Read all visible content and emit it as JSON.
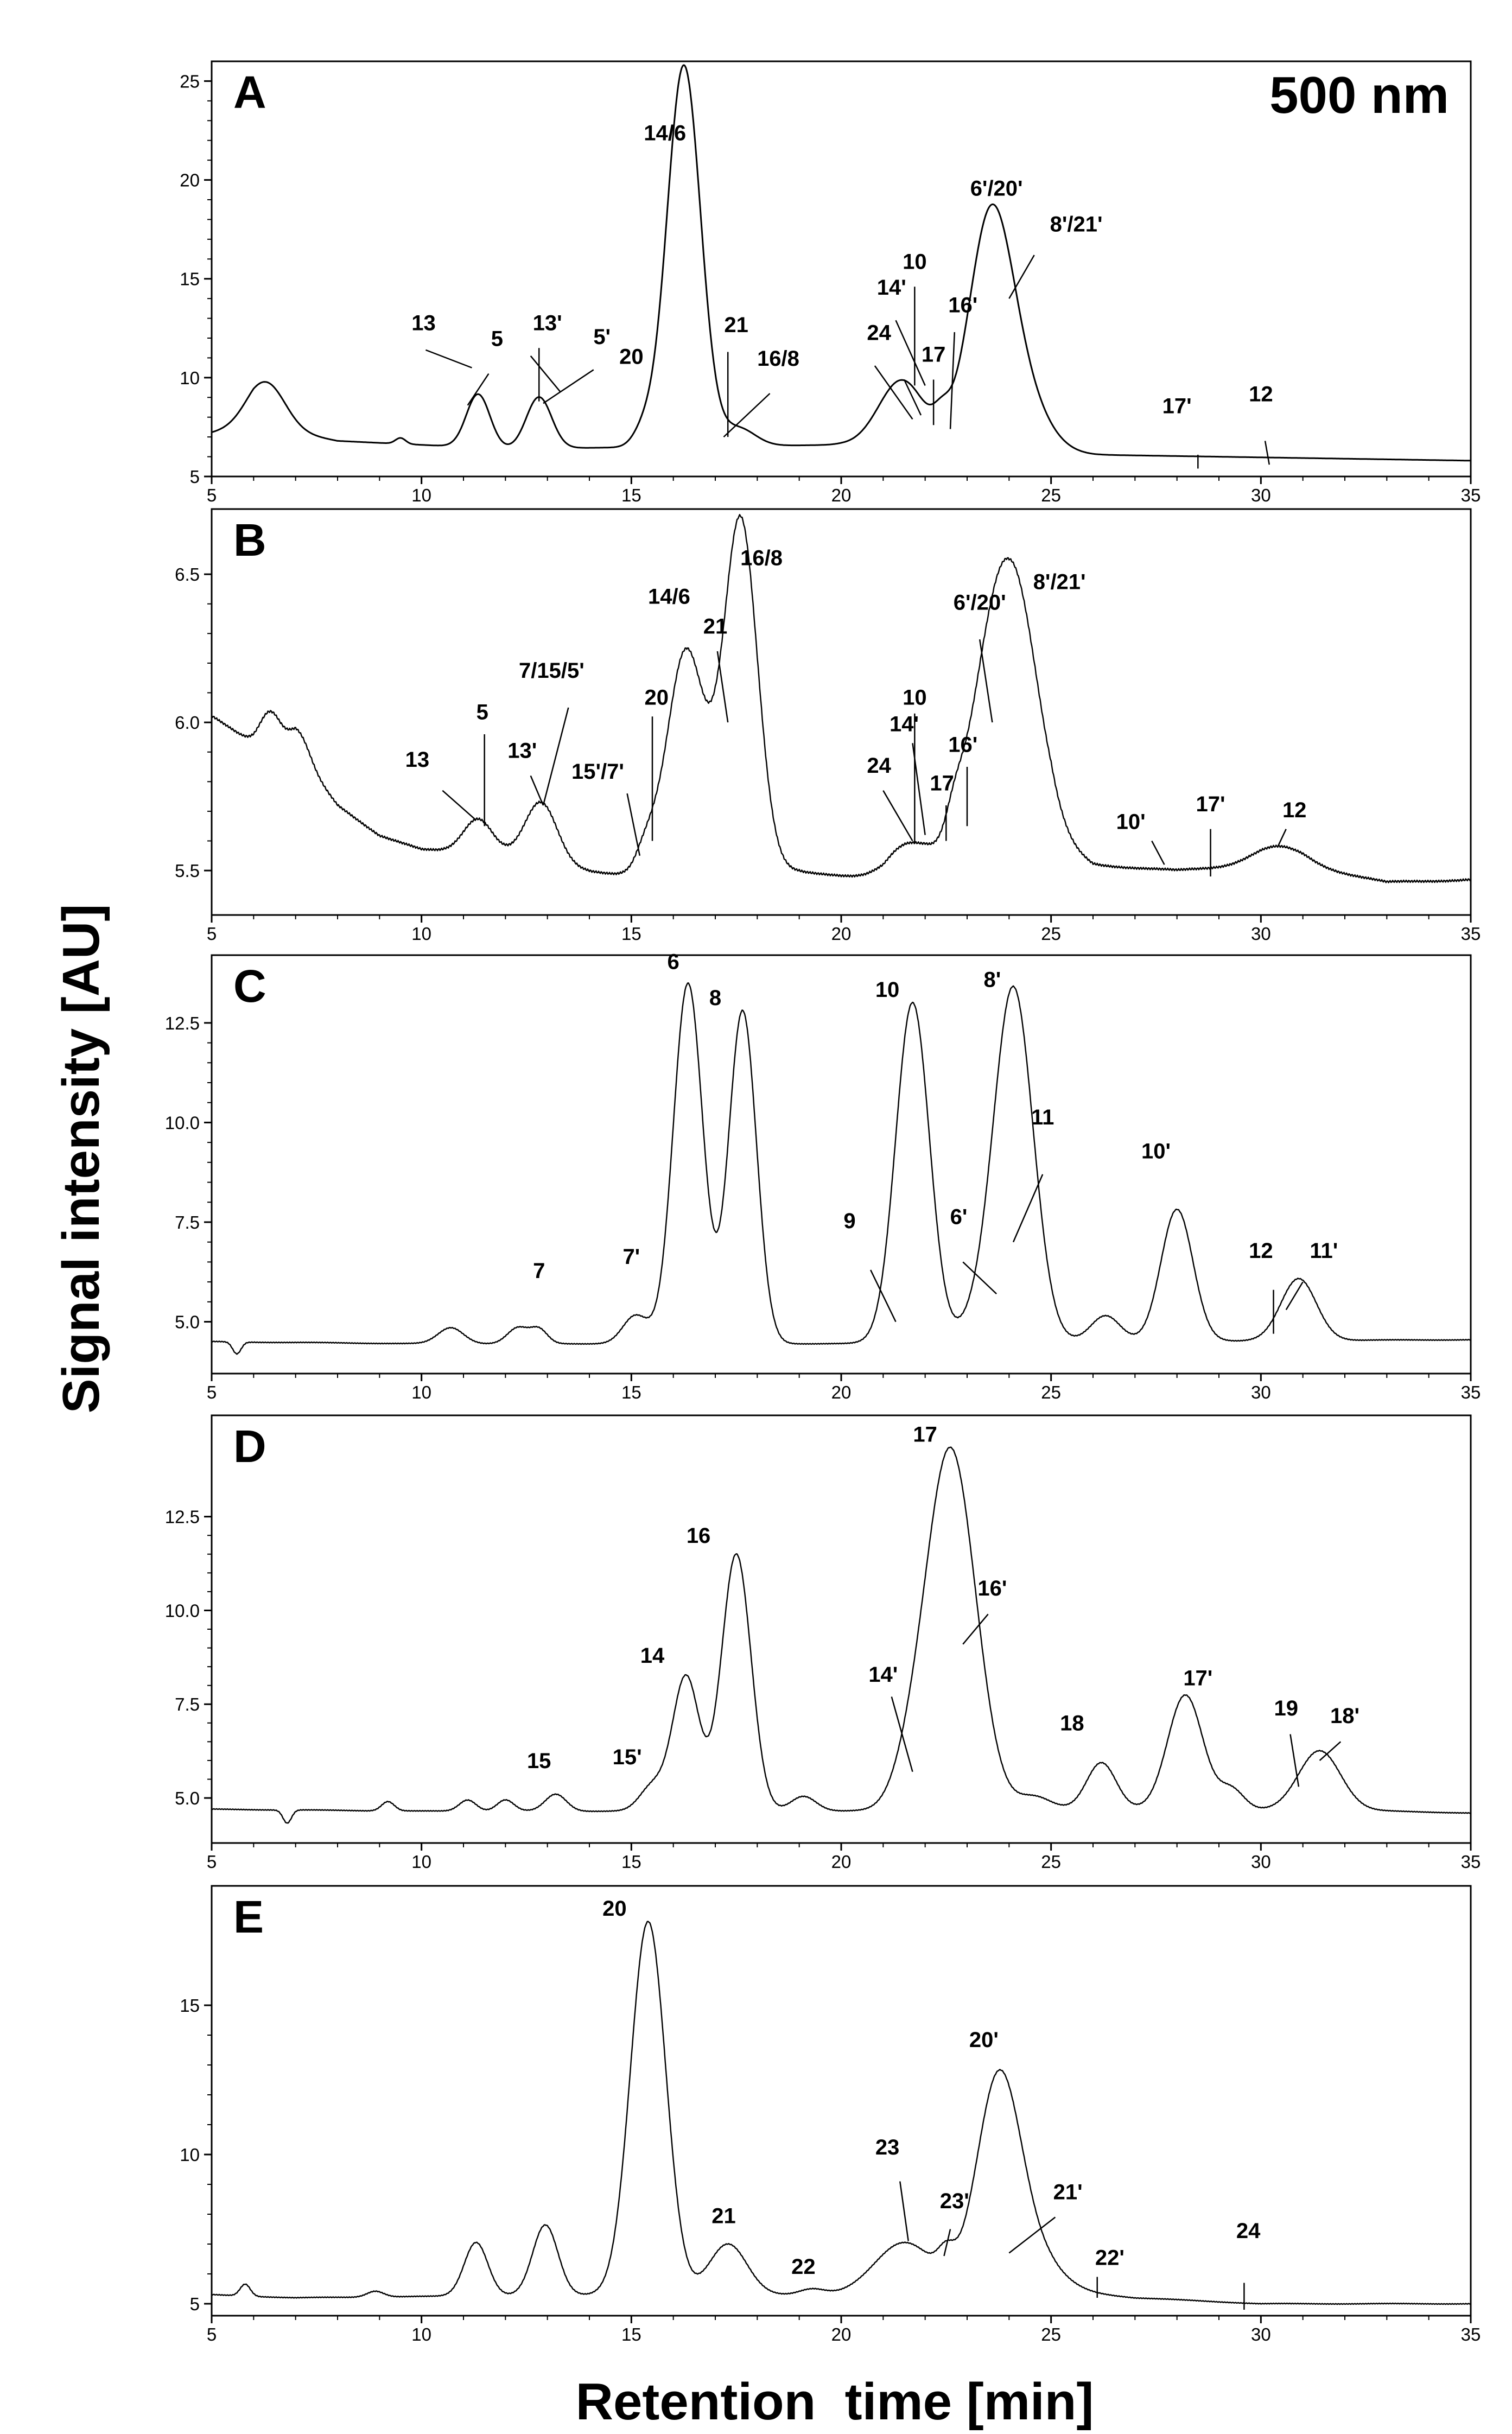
{
  "chart_data": [
    {
      "type": "line",
      "panel_label": "A",
      "corner_label": "500 nm",
      "xlim": [
        5,
        35
      ],
      "ylim": [
        5,
        26
      ],
      "x_ticks": [
        5,
        10,
        15,
        20,
        25,
        30,
        35
      ],
      "y_ticks": [
        5,
        10,
        15,
        20,
        25
      ],
      "y_tick_labels": [
        "5",
        "10",
        "15",
        "20",
        "25"
      ],
      "baseline": [
        [
          5,
          7.2
        ],
        [
          6,
          7.6
        ],
        [
          8,
          6.8
        ],
        [
          12,
          6.4
        ],
        [
          20,
          6.6
        ],
        [
          26,
          6.1
        ],
        [
          35,
          5.8
        ]
      ],
      "noise": 0,
      "peaks": [
        [
          6.3,
          2.3,
          0.45
        ],
        [
          9.5,
          0.3,
          0.12
        ],
        [
          11.35,
          2.7,
          0.28
        ],
        [
          12.8,
          2.6,
          0.3
        ],
        [
          15.3,
          0.8,
          0.25
        ],
        [
          16.25,
          19.3,
          0.4
        ],
        [
          17.55,
          0.9,
          0.4
        ],
        [
          21.45,
          3.4,
          0.55
        ],
        [
          22.4,
          0.9,
          0.2
        ],
        [
          23.55,
          11.2,
          0.52
        ],
        [
          24.3,
          2.6,
          0.6
        ]
      ],
      "annotations": [
        {
          "text": "13",
          "x": 10.05,
          "y": 12.4
        },
        {
          "text": "5",
          "x": 11.8,
          "y": 11.6
        },
        {
          "text": "13'",
          "x": 13.0,
          "y": 12.4
        },
        {
          "text": "5'",
          "x": 14.3,
          "y": 11.7
        },
        {
          "text": "14/6",
          "x": 15.8,
          "y": 22.0
        },
        {
          "text": "20",
          "x": 15.0,
          "y": 10.7
        },
        {
          "text": "21",
          "x": 17.5,
          "y": 12.3
        },
        {
          "text": "16/8",
          "x": 18.5,
          "y": 10.6
        },
        {
          "text": "24",
          "x": 20.9,
          "y": 11.9
        },
        {
          "text": "14'",
          "x": 21.2,
          "y": 14.2
        },
        {
          "text": "10",
          "x": 21.75,
          "y": 15.5
        },
        {
          "text": "17",
          "x": 22.2,
          "y": 10.8
        },
        {
          "text": "16'",
          "x": 22.9,
          "y": 13.3
        },
        {
          "text": "6'/20'",
          "x": 23.7,
          "y": 19.2
        },
        {
          "text": "8'/21'",
          "x": 25.6,
          "y": 17.4
        },
        {
          "text": "17'",
          "x": 28.0,
          "y": 8.2
        },
        {
          "text": "12",
          "x": 30.0,
          "y": 8.8
        }
      ],
      "annotation_lines": [
        [
          11.6,
          10.2,
          11.1,
          8.6
        ],
        [
          12.8,
          11.5,
          12.8,
          8.8
        ],
        [
          11.2,
          10.5,
          10.1,
          11.4
        ],
        [
          13.3,
          9.3,
          12.6,
          11.1
        ],
        [
          14.1,
          10.4,
          12.9,
          8.7
        ],
        [
          17.3,
          11.3,
          17.3,
          7.0
        ],
        [
          18.3,
          9.2,
          17.2,
          7.0
        ],
        [
          21.5,
          9.9,
          21.9,
          8.1
        ],
        [
          20.8,
          10.6,
          21.7,
          7.9
        ],
        [
          21.3,
          12.9,
          22.0,
          9.6
        ],
        [
          21.75,
          14.6,
          21.75,
          9.6
        ],
        [
          22.2,
          9.9,
          22.2,
          7.6
        ],
        [
          22.7,
          12.3,
          22.6,
          7.4
        ],
        [
          24.6,
          16.2,
          24.0,
          14.0
        ],
        [
          28.5,
          6.1,
          28.5,
          5.4
        ],
        [
          30.1,
          6.8,
          30.2,
          5.6
        ]
      ]
    },
    {
      "type": "line",
      "panel_label": "B",
      "xlim": [
        5,
        35
      ],
      "ylim": [
        5.35,
        6.72
      ],
      "x_ticks": [
        5,
        10,
        15,
        20,
        25,
        30,
        35
      ],
      "y_ticks": [
        5.5,
        6.0,
        6.5
      ],
      "y_tick_labels": [
        "5.5",
        "6.0",
        "6.5"
      ],
      "baseline": [
        [
          5,
          6.02
        ],
        [
          6,
          5.93
        ],
        [
          7,
          5.9
        ],
        [
          8,
          5.72
        ],
        [
          9,
          5.62
        ],
        [
          10,
          5.57
        ],
        [
          12,
          5.55
        ],
        [
          14,
          5.5
        ],
        [
          15,
          5.48
        ],
        [
          17,
          5.52
        ],
        [
          19,
          5.5
        ],
        [
          21,
          5.46
        ],
        [
          22,
          5.52
        ],
        [
          24,
          5.54
        ],
        [
          25,
          5.6
        ],
        [
          26,
          5.52
        ],
        [
          28,
          5.5
        ],
        [
          30,
          5.52
        ],
        [
          31,
          5.52
        ],
        [
          33,
          5.46
        ],
        [
          35,
          5.47
        ]
      ],
      "noise": 0.006,
      "peaks": [
        [
          6.4,
          0.12,
          0.25
        ],
        [
          7.1,
          0.08,
          0.25
        ],
        [
          11.35,
          0.12,
          0.35
        ],
        [
          12.85,
          0.2,
          0.38
        ],
        [
          15.35,
          0.08,
          0.25
        ],
        [
          16.3,
          0.74,
          0.45
        ],
        [
          17.6,
          1.17,
          0.4
        ],
        [
          21.5,
          0.1,
          0.5
        ],
        [
          22.7,
          0.08,
          0.2
        ],
        [
          23.5,
          0.5,
          0.55
        ],
        [
          24.2,
          0.73,
          0.55
        ],
        [
          30.4,
          0.06,
          0.6
        ]
      ],
      "annotations": [
        {
          "text": "13",
          "x": 9.9,
          "y": 5.85
        },
        {
          "text": "5",
          "x": 11.45,
          "y": 6.01
        },
        {
          "text": "13'",
          "x": 12.4,
          "y": 5.88
        },
        {
          "text": "7/15/5'",
          "x": 13.1,
          "y": 6.15
        },
        {
          "text": "20",
          "x": 15.6,
          "y": 6.06
        },
        {
          "text": "15'/7'",
          "x": 14.2,
          "y": 5.81
        },
        {
          "text": "14/6",
          "x": 15.9,
          "y": 6.4
        },
        {
          "text": "21",
          "x": 17.0,
          "y": 6.3
        },
        {
          "text": "16/8",
          "x": 18.1,
          "y": 6.53
        },
        {
          "text": "24",
          "x": 20.9,
          "y": 5.83
        },
        {
          "text": "14'",
          "x": 21.5,
          "y": 5.97
        },
        {
          "text": "10",
          "x": 21.75,
          "y": 6.06
        },
        {
          "text": "17",
          "x": 22.4,
          "y": 5.77
        },
        {
          "text": "16'",
          "x": 22.9,
          "y": 5.9
        },
        {
          "text": "6'/20'",
          "x": 23.3,
          "y": 6.38
        },
        {
          "text": "8'/21'",
          "x": 25.2,
          "y": 6.45
        },
        {
          "text": "10'",
          "x": 26.9,
          "y": 5.64
        },
        {
          "text": "17'",
          "x": 28.8,
          "y": 5.7
        },
        {
          "text": "12",
          "x": 30.8,
          "y": 5.68
        }
      ],
      "annotation_lines": [
        [
          10.5,
          5.77,
          11.3,
          5.67
        ],
        [
          11.5,
          5.96,
          11.5,
          5.65
        ],
        [
          12.6,
          5.82,
          12.9,
          5.72
        ],
        [
          13.5,
          6.05,
          12.9,
          5.72
        ],
        [
          15.5,
          6.02,
          15.5,
          5.6
        ],
        [
          14.9,
          5.76,
          15.2,
          5.55
        ],
        [
          17.05,
          6.24,
          17.3,
          6.0
        ],
        [
          21.0,
          5.77,
          21.7,
          5.6
        ],
        [
          21.7,
          5.93,
          22.0,
          5.62
        ],
        [
          21.75,
          6.03,
          21.75,
          5.59
        ],
        [
          22.5,
          5.72,
          22.5,
          5.6
        ],
        [
          23.0,
          5.85,
          23.0,
          5.65
        ],
        [
          23.3,
          6.28,
          23.6,
          6.0
        ],
        [
          27.4,
          5.6,
          27.7,
          5.52
        ],
        [
          28.8,
          5.64,
          28.8,
          5.48
        ],
        [
          30.6,
          5.64,
          30.4,
          5.58
        ]
      ]
    },
    {
      "type": "line",
      "panel_label": "C",
      "xlim": [
        5,
        35
      ],
      "ylim": [
        3.7,
        14.2
      ],
      "x_ticks": [
        5,
        10,
        15,
        20,
        25,
        30,
        35
      ],
      "y_ticks": [
        5.0,
        7.5,
        10.0,
        12.5
      ],
      "y_tick_labels": [
        "5.0",
        "7.5",
        "10.0",
        "12.5"
      ],
      "baseline": [
        [
          5,
          4.5
        ],
        [
          10,
          4.45
        ],
        [
          20,
          4.45
        ],
        [
          25,
          4.5
        ],
        [
          35,
          4.55
        ]
      ],
      "noise": 0.015,
      "peaks": [
        [
          5.6,
          -0.3,
          0.1
        ],
        [
          10.7,
          0.4,
          0.3
        ],
        [
          12.3,
          0.4,
          0.25
        ],
        [
          12.8,
          0.35,
          0.2
        ],
        [
          15.1,
          0.7,
          0.3
        ],
        [
          16.35,
          9.05,
          0.35
        ],
        [
          17.65,
          8.35,
          0.33
        ],
        [
          21.7,
          8.55,
          0.4
        ],
        [
          23.2,
          0.4,
          0.4
        ],
        [
          24.1,
          8.9,
          0.47
        ],
        [
          26.3,
          0.65,
          0.35
        ],
        [
          28.0,
          3.3,
          0.38
        ],
        [
          30.9,
          1.55,
          0.42
        ]
      ],
      "annotations": [
        {
          "text": "7",
          "x": 12.8,
          "y": 6.1
        },
        {
          "text": "7'",
          "x": 15.0,
          "y": 6.45
        },
        {
          "text": "6",
          "x": 16.0,
          "y": 13.85
        },
        {
          "text": "8",
          "x": 17.0,
          "y": 12.95
        },
        {
          "text": "9",
          "x": 20.2,
          "y": 7.35
        },
        {
          "text": "10",
          "x": 21.1,
          "y": 13.15
        },
        {
          "text": "6'",
          "x": 22.8,
          "y": 7.45
        },
        {
          "text": "8'",
          "x": 23.6,
          "y": 13.4
        },
        {
          "text": "11",
          "x": 24.8,
          "y": 9.95
        },
        {
          "text": "10'",
          "x": 27.5,
          "y": 9.1
        },
        {
          "text": "12",
          "x": 30.0,
          "y": 6.6
        },
        {
          "text": "11'",
          "x": 31.5,
          "y": 6.6
        }
      ],
      "annotation_lines": [
        [
          20.7,
          6.3,
          21.3,
          5.0
        ],
        [
          22.9,
          6.5,
          23.7,
          5.7
        ],
        [
          24.8,
          8.7,
          24.1,
          7.0
        ],
        [
          30.3,
          5.8,
          30.3,
          4.7
        ],
        [
          31.0,
          6.0,
          30.6,
          5.3
        ]
      ]
    },
    {
      "type": "line",
      "panel_label": "D",
      "xlim": [
        5,
        35
      ],
      "ylim": [
        3.8,
        15.2
      ],
      "x_ticks": [
        5,
        10,
        15,
        20,
        25,
        30,
        35
      ],
      "y_ticks": [
        5.0,
        7.5,
        10.0,
        12.5
      ],
      "y_tick_labels": [
        "5.0",
        "7.5",
        "10.0",
        "12.5"
      ],
      "baseline": [
        [
          5,
          4.7
        ],
        [
          10,
          4.65
        ],
        [
          20,
          4.65
        ],
        [
          27,
          4.7
        ],
        [
          33,
          4.65
        ],
        [
          35,
          4.6
        ]
      ],
      "noise": 0.015,
      "peaks": [
        [
          6.8,
          -0.35,
          0.1
        ],
        [
          9.2,
          0.25,
          0.15
        ],
        [
          11.1,
          0.3,
          0.2
        ],
        [
          12.0,
          0.3,
          0.2
        ],
        [
          13.2,
          0.45,
          0.25
        ],
        [
          15.5,
          0.65,
          0.3
        ],
        [
          16.3,
          3.6,
          0.32
        ],
        [
          17.5,
          6.85,
          0.35
        ],
        [
          19.1,
          0.4,
          0.3
        ],
        [
          21.6,
          0.6,
          0.4
        ],
        [
          22.6,
          9.65,
          0.6
        ],
        [
          24.6,
          0.35,
          0.4
        ],
        [
          26.2,
          1.25,
          0.35
        ],
        [
          28.2,
          3.05,
          0.42
        ],
        [
          29.3,
          0.55,
          0.3
        ],
        [
          31.4,
          1.6,
          0.5
        ]
      ],
      "annotations": [
        {
          "text": "15",
          "x": 12.8,
          "y": 5.8
        },
        {
          "text": "15'",
          "x": 14.9,
          "y": 5.9
        },
        {
          "text": "14",
          "x": 15.5,
          "y": 8.6
        },
        {
          "text": "16",
          "x": 16.6,
          "y": 11.8
        },
        {
          "text": "14'",
          "x": 21.0,
          "y": 8.1
        },
        {
          "text": "17",
          "x": 22.0,
          "y": 14.5
        },
        {
          "text": "16'",
          "x": 23.6,
          "y": 10.4
        },
        {
          "text": "18",
          "x": 25.5,
          "y": 6.8
        },
        {
          "text": "17'",
          "x": 28.5,
          "y": 8.0
        },
        {
          "text": "19",
          "x": 30.6,
          "y": 7.2
        },
        {
          "text": "18'",
          "x": 32.0,
          "y": 7.0
        }
      ],
      "annotation_lines": [
        [
          21.2,
          7.7,
          21.7,
          5.7
        ],
        [
          23.5,
          9.9,
          22.9,
          9.1
        ],
        [
          30.7,
          6.7,
          30.9,
          5.3
        ],
        [
          31.9,
          6.5,
          31.4,
          6.0
        ]
      ]
    },
    {
      "type": "line",
      "panel_label": "E",
      "xlim": [
        5,
        35
      ],
      "ylim": [
        4.6,
        19.0
      ],
      "x_ticks": [
        5,
        10,
        15,
        20,
        25,
        30,
        35
      ],
      "y_ticks": [
        5,
        10,
        15
      ],
      "y_tick_labels": [
        "5",
        "10",
        "15"
      ],
      "baseline": [
        [
          5,
          5.3
        ],
        [
          7,
          5.2
        ],
        [
          14,
          5.3
        ],
        [
          20,
          5.3
        ],
        [
          25,
          5.5
        ],
        [
          27,
          5.2
        ],
        [
          30,
          5.0
        ],
        [
          35,
          5.0
        ]
      ],
      "noise": 0.02,
      "peaks": [
        [
          5.8,
          0.4,
          0.12
        ],
        [
          8.9,
          0.2,
          0.2
        ],
        [
          11.3,
          1.8,
          0.28
        ],
        [
          12.95,
          2.35,
          0.3
        ],
        [
          15.4,
          12.5,
          0.42
        ],
        [
          17.3,
          1.7,
          0.45
        ],
        [
          19.3,
          0.2,
          0.3
        ],
        [
          21.5,
          1.7,
          0.7
        ],
        [
          22.5,
          0.7,
          0.2
        ],
        [
          23.75,
          7.0,
          0.52
        ],
        [
          24.6,
          1.0,
          0.6
        ]
      ],
      "annotations": [
        {
          "text": "20",
          "x": 14.6,
          "y": 18.0
        },
        {
          "text": "21",
          "x": 17.2,
          "y": 7.7
        },
        {
          "text": "22",
          "x": 19.1,
          "y": 6.0
        },
        {
          "text": "23",
          "x": 21.1,
          "y": 10.0
        },
        {
          "text": "23'",
          "x": 22.7,
          "y": 8.2
        },
        {
          "text": "20'",
          "x": 23.4,
          "y": 13.6
        },
        {
          "text": "21'",
          "x": 25.4,
          "y": 8.5
        },
        {
          "text": "22'",
          "x": 26.4,
          "y": 6.3
        },
        {
          "text": "24",
          "x": 29.7,
          "y": 7.2
        }
      ],
      "annotation_lines": [
        [
          21.4,
          9.1,
          21.6,
          7.1
        ],
        [
          22.6,
          7.5,
          22.45,
          6.6
        ],
        [
          25.1,
          7.9,
          24.0,
          6.7
        ],
        [
          26.1,
          5.9,
          26.1,
          5.2
        ],
        [
          29.6,
          5.7,
          29.6,
          4.8
        ]
      ]
    }
  ],
  "axes": {
    "xlabel": "Retention  time [min]",
    "ylabel": "Signal intensity [AU]"
  },
  "colors": {
    "line": "#000000",
    "background": "#ffffff"
  }
}
